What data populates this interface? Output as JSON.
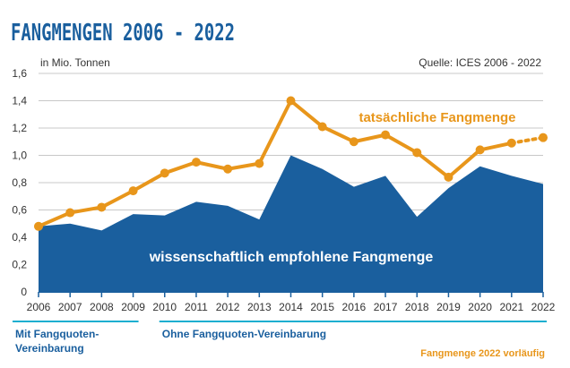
{
  "chart_data": {
    "type": "area",
    "title": "FANGMENGEN 2006 - 2022",
    "unit_label": "in Mio. Tonnen",
    "source": "Quelle: ICES 2006 - 2022",
    "x": [
      "2006",
      "2007",
      "2008",
      "2009",
      "2010",
      "2011",
      "2012",
      "2013",
      "2014",
      "2015",
      "2016",
      "2017",
      "2018",
      "2019",
      "2020",
      "2021",
      "2022"
    ],
    "ylim": [
      0,
      1.6
    ],
    "yticks": [
      "0",
      "0,2",
      "0,4",
      "0,6",
      "0,8",
      "1,0",
      "1,2",
      "1,4",
      "1,6"
    ],
    "grid": true,
    "series": [
      {
        "name": "wissenschaftlich empfohlene Fangmenge",
        "kind": "area",
        "color": "#1a5f9e",
        "values": [
          0.48,
          0.5,
          0.45,
          0.57,
          0.56,
          0.66,
          0.63,
          0.53,
          1.0,
          0.9,
          0.77,
          0.85,
          0.55,
          0.76,
          0.92,
          0.85,
          0.79
        ]
      },
      {
        "name": "tatsächliche Fangmenge",
        "kind": "line",
        "color": "#e8961b",
        "values": [
          0.48,
          0.58,
          0.62,
          0.74,
          0.87,
          0.95,
          0.9,
          0.94,
          1.4,
          1.21,
          1.1,
          1.15,
          1.02,
          0.84,
          1.04,
          1.09,
          1.13
        ],
        "provisional_from": "2021"
      }
    ],
    "periods": [
      {
        "label": "Mit Fangquoten-\nVereinbarung",
        "from": "2006",
        "to": "2009"
      },
      {
        "label": "Ohne Fangquoten-Vereinbarung",
        "from": "2010",
        "to": "2022"
      }
    ],
    "footnote": "Fangmenge 2022 vorläufig"
  },
  "colors": {
    "title": "#1a5f9e",
    "axis": "#1a5f9e",
    "text": "#333333",
    "grid": "#c8c8c8",
    "period_line": "#1aaed0"
  }
}
